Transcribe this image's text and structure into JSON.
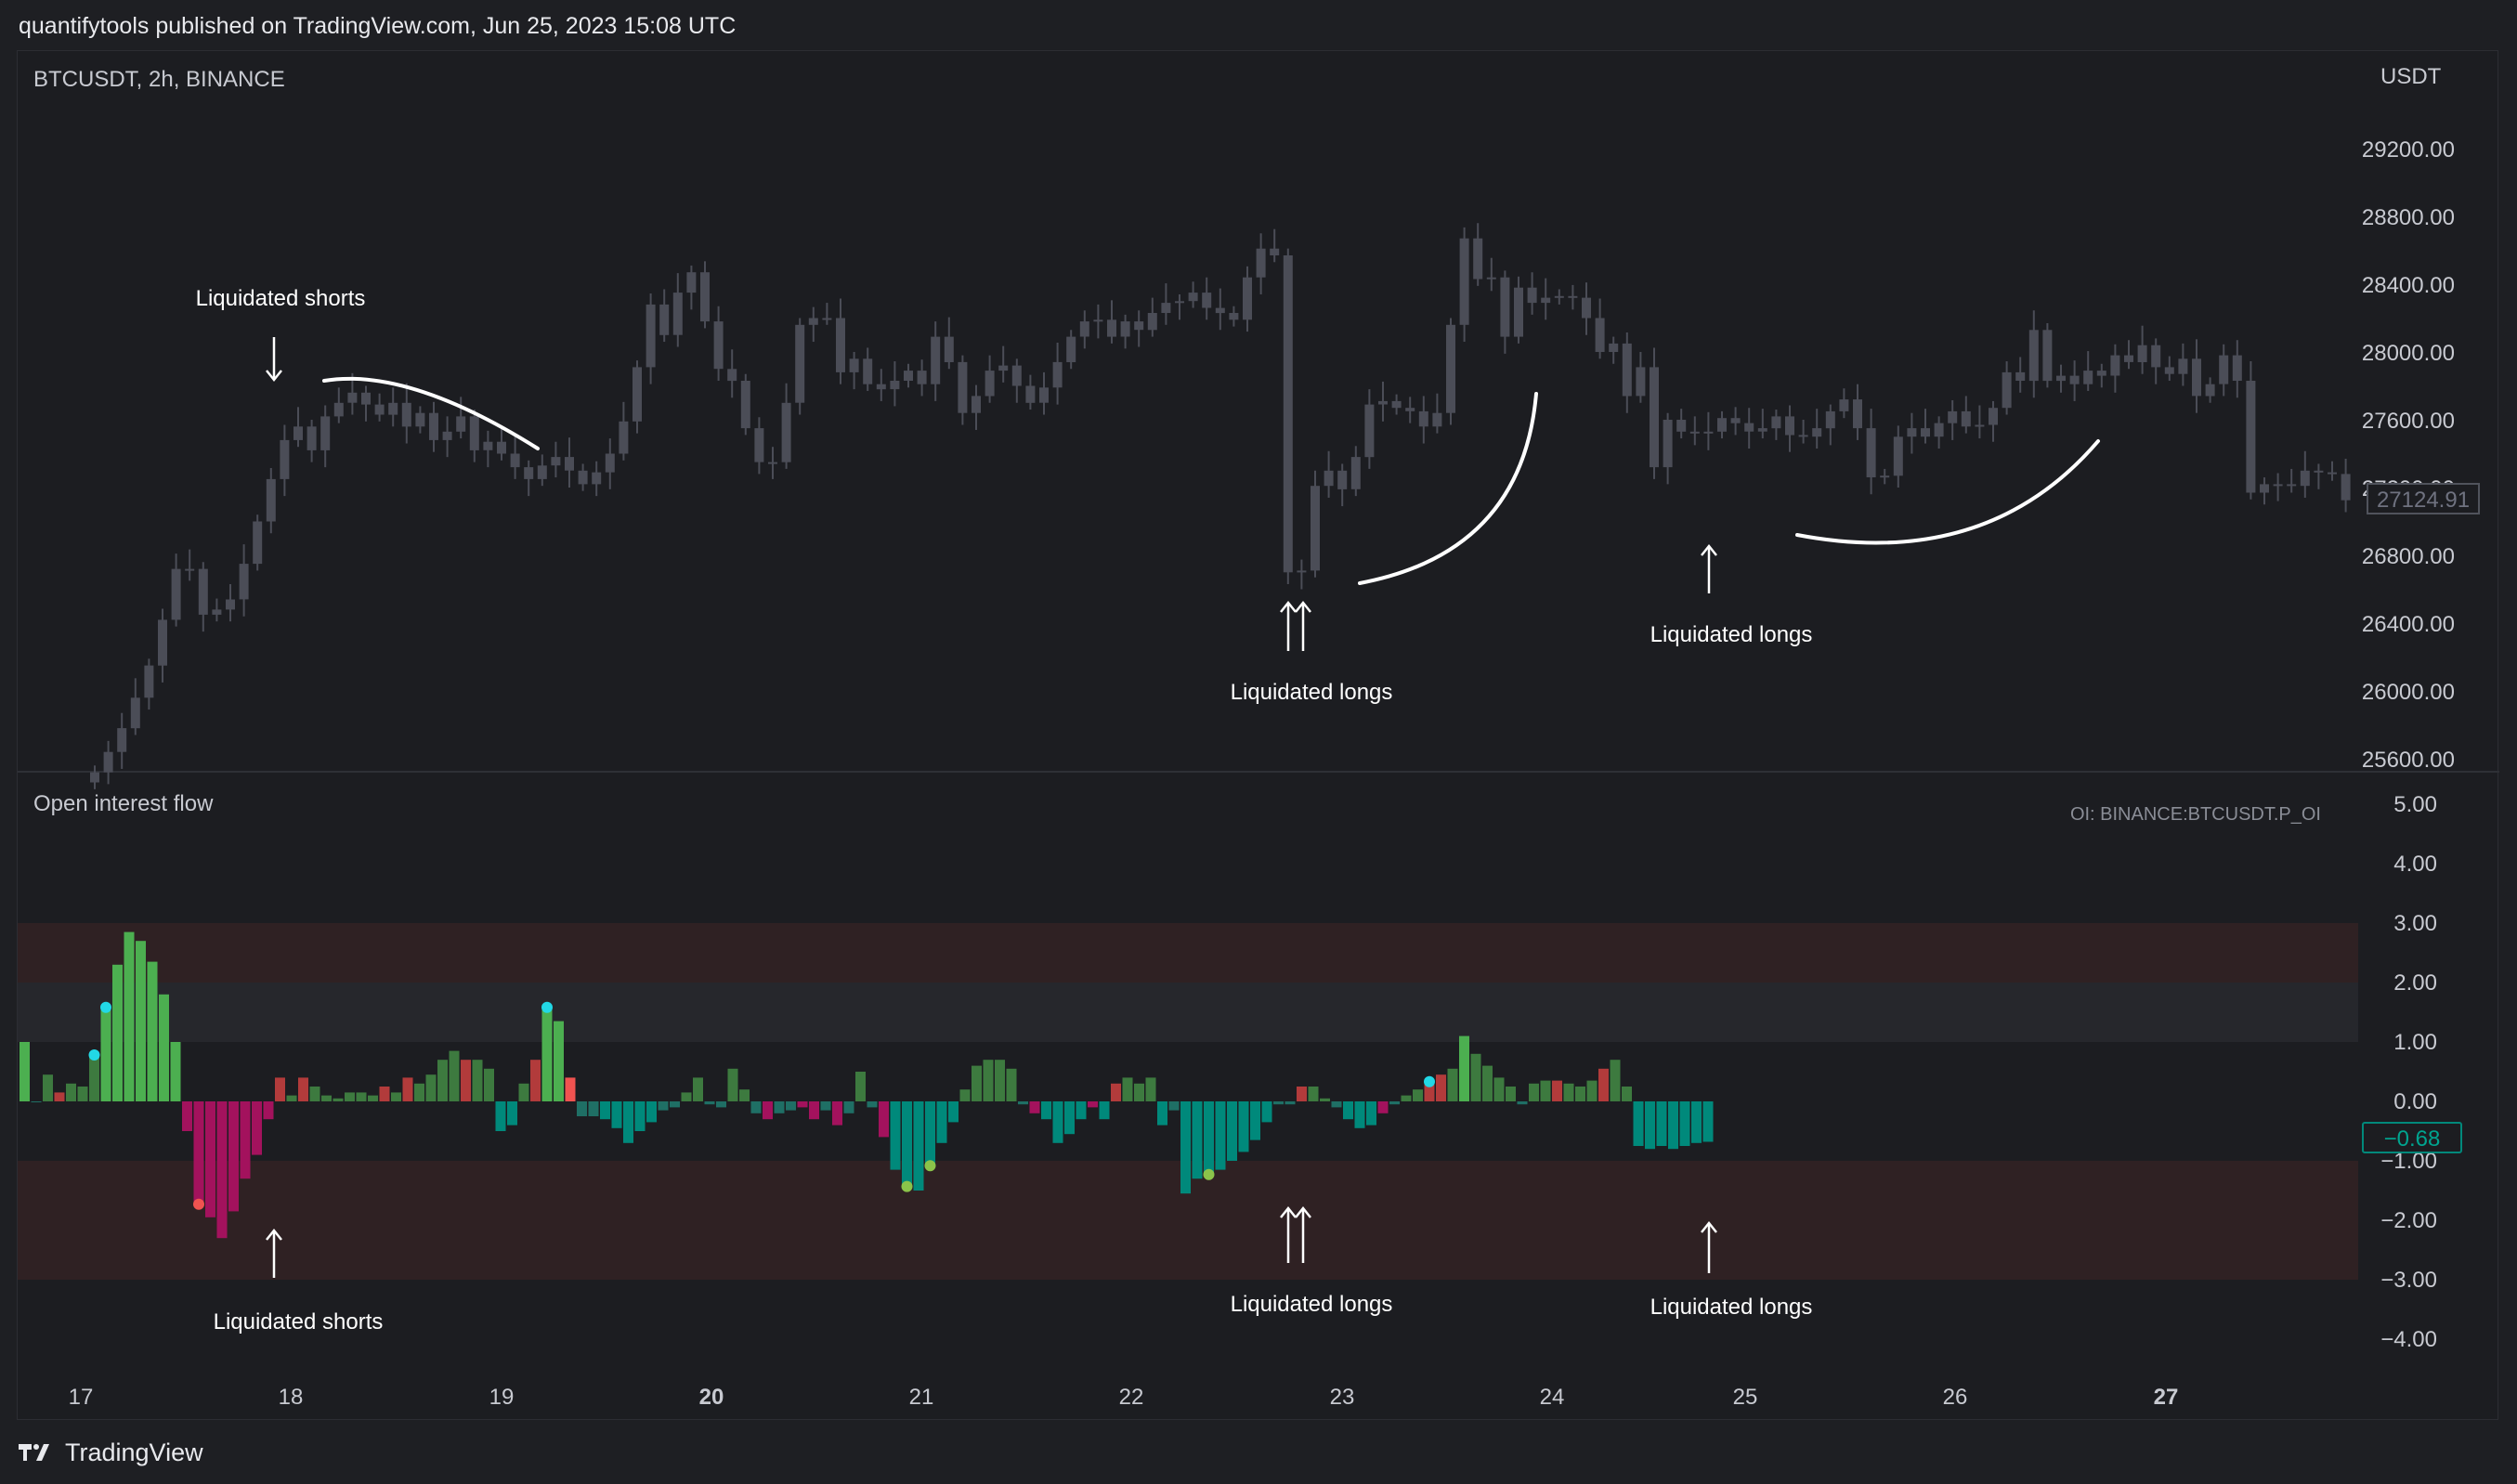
{
  "header": {
    "attribution": "quantifytools published on TradingView.com, Jun 25, 2023 15:08 UTC"
  },
  "price_pane": {
    "symbol": "BTCUSDT, 2h, BINANCE",
    "currency": "USDT",
    "y_ticks": [
      "29200.00",
      "28800.00",
      "28400.00",
      "28000.00",
      "27600.00",
      "27200.00",
      "26800.00",
      "26400.00",
      "26000.00",
      "25600.00"
    ],
    "last_price": "27124.91",
    "annotations": [
      {
        "label": "Liquidated shorts",
        "arrow": "down",
        "count": 1
      },
      {
        "label": "Liquidated longs",
        "arrow": "up",
        "count": 2
      },
      {
        "label": "Liquidated longs",
        "arrow": "up",
        "count": 1
      }
    ]
  },
  "oi_pane": {
    "title": "Open interest flow",
    "source": "OI: BINANCE:BTCUSDT.P_OI",
    "y_ticks": [
      "5.00",
      "4.00",
      "3.00",
      "2.00",
      "1.00",
      "0.00",
      "−1.00",
      "−2.00",
      "−3.00",
      "−4.00"
    ],
    "last_value": "−0.68",
    "annotations": [
      {
        "label": "Liquidated shorts",
        "arrow": "up",
        "count": 1
      },
      {
        "label": "Liquidated longs",
        "arrow": "up",
        "count": 2
      },
      {
        "label": "Liquidated longs",
        "arrow": "up",
        "count": 1
      }
    ]
  },
  "x_axis": {
    "labels": [
      "17",
      "18",
      "19",
      "20",
      "21",
      "22",
      "23",
      "24",
      "25",
      "26",
      "27"
    ],
    "bold": [
      "20",
      "27"
    ]
  },
  "colors": {
    "candle": "#4b4d57",
    "bullish_flow": "#4caf50",
    "bearish_flow": "#00897b",
    "short_flow": "#a3125d",
    "up_faint": "#3d7a3f",
    "down_faint": "#b23b3b",
    "extreme_dot": "#22d8e6",
    "last_value_box": "#00897b"
  },
  "footer": {
    "brand": "TradingView"
  },
  "chart_data": [
    {
      "type": "candlestick",
      "title": "BTCUSDT, 2h, BINANCE",
      "ylabel": "USDT",
      "ylim": [
        25500,
        29500
      ],
      "x": [
        "17",
        "18",
        "19",
        "20",
        "21",
        "22",
        "23",
        "24",
        "25",
        "26",
        "27"
      ],
      "close_path": [
        25520,
        25640,
        25780,
        25960,
        26150,
        26420,
        26720,
        26720,
        26450,
        26480,
        26540,
        26750,
        27000,
        27250,
        27480,
        27560,
        27420,
        27620,
        27700,
        27760,
        27690,
        27630,
        27700,
        27560,
        27640,
        27480,
        27530,
        27620,
        27420,
        27470,
        27400,
        27320,
        27250,
        27330,
        27380,
        27300,
        27220,
        27290,
        27400,
        27590,
        27910,
        28280,
        28100,
        28350,
        28470,
        28180,
        27900,
        27830,
        27550,
        27350,
        27350,
        27700,
        28160,
        28200,
        28200,
        27880,
        27960,
        27810,
        27780,
        27830,
        27890,
        27810,
        28090,
        27940,
        27640,
        27740,
        27890,
        27920,
        27800,
        27700,
        27790,
        27940,
        28090,
        28180,
        28190,
        28090,
        28180,
        28130,
        28230,
        28290,
        28300,
        28350,
        28260,
        28230,
        28190,
        28440,
        28610,
        28570,
        26700,
        26710,
        27210,
        27300,
        27190,
        27380,
        27690,
        27710,
        27670,
        27650,
        27560,
        27640,
        28160,
        28670,
        28430,
        28440,
        28090,
        28380,
        28290,
        28320,
        28330,
        28320,
        28200,
        28000,
        28050,
        27740,
        27910,
        27320,
        27600,
        27530,
        27520,
        27530,
        27610,
        27580,
        27530,
        27550,
        27620,
        27510,
        27500,
        27550,
        27650,
        27720,
        27550,
        27260,
        27270,
        27500,
        27550,
        27500,
        27580,
        27650,
        27560,
        27570,
        27670,
        27880,
        27830,
        28130,
        27830,
        27860,
        27810,
        27890,
        27860,
        27980,
        27940,
        28040,
        27910,
        27870,
        27960,
        27740,
        27810,
        27980,
        27830,
        27170,
        27220,
        27220,
        27210,
        27300,
        27290,
        27280,
        27125
      ],
      "last_price": 27124.91
    },
    {
      "type": "bar",
      "title": "Open interest flow",
      "ylim": [
        -4.5,
        5.3
      ],
      "bands": [
        [
          2,
          3
        ],
        [
          1,
          2
        ],
        [
          -2,
          -1
        ],
        [
          -3,
          -2
        ]
      ],
      "values": [
        1.0,
        0.0,
        0.45,
        0.15,
        0.3,
        0.25,
        0.75,
        1.55,
        2.3,
        2.85,
        2.7,
        2.35,
        1.8,
        1.0,
        -0.5,
        -1.7,
        -1.95,
        -2.3,
        -1.85,
        -1.3,
        -0.9,
        -0.3,
        0.4,
        0.1,
        0.4,
        0.25,
        0.1,
        0.05,
        0.15,
        0.15,
        0.1,
        0.25,
        0.15,
        0.4,
        0.3,
        0.45,
        0.7,
        0.85,
        0.7,
        0.7,
        0.55,
        -0.5,
        -0.4,
        0.3,
        0.7,
        1.55,
        1.35,
        0.4,
        -0.25,
        -0.25,
        -0.3,
        -0.45,
        -0.7,
        -0.5,
        -0.35,
        -0.15,
        -0.1,
        0.15,
        0.4,
        -0.05,
        -0.1,
        0.55,
        0.2,
        -0.2,
        -0.3,
        -0.2,
        -0.15,
        -0.1,
        -0.3,
        -0.15,
        -0.4,
        -0.2,
        0.5,
        -0.1,
        -0.6,
        -1.15,
        -1.4,
        -1.5,
        -1.05,
        -0.7,
        -0.35,
        0.2,
        0.6,
        0.7,
        0.7,
        0.55,
        -0.05,
        -0.2,
        -0.3,
        -0.7,
        -0.55,
        -0.3,
        -0.1,
        -0.3,
        0.3,
        0.4,
        0.3,
        0.4,
        -0.4,
        -0.15,
        -1.55,
        -1.3,
        -1.2,
        -1.15,
        -1.0,
        -0.85,
        -0.65,
        -0.35,
        -0.05,
        -0.05,
        0.25,
        0.25,
        0.05,
        -0.1,
        -0.3,
        -0.45,
        -0.4,
        -0.2,
        -0.05,
        0.1,
        0.2,
        0.3,
        0.45,
        0.55,
        1.1,
        0.8,
        0.6,
        0.4,
        0.25,
        -0.05,
        0.3,
        0.35,
        0.35,
        0.3,
        0.25,
        0.35,
        0.55,
        0.7,
        0.25,
        -0.75,
        -0.8,
        -0.75,
        -0.8,
        -0.75,
        -0.7,
        -0.68
      ],
      "last_value": -0.68
    }
  ]
}
